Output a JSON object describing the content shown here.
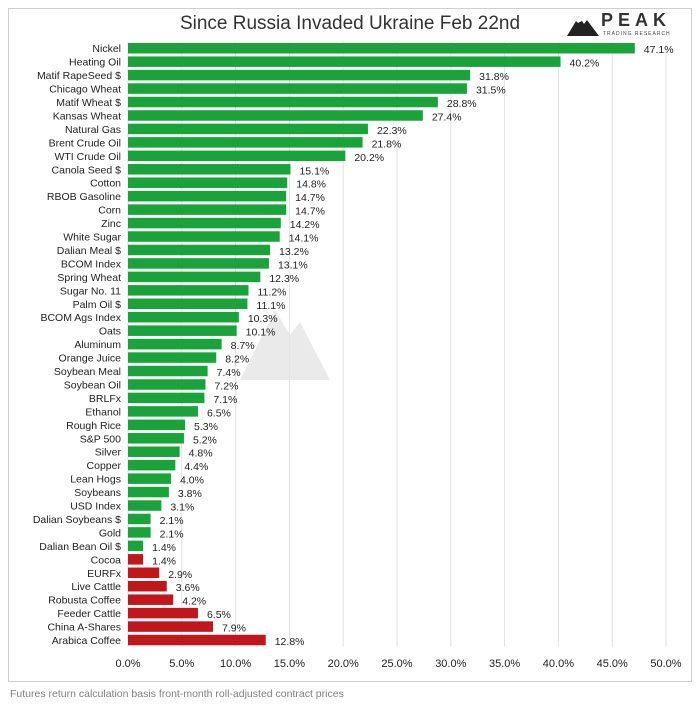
{
  "title": "Since Russia Invaded Ukraine Feb 22nd",
  "logo": {
    "name": "PEAK",
    "subtitle": "TRADING RESEARCH"
  },
  "footnote": "Futures return calculation basis front-month roll-adjusted contract prices",
  "colors": {
    "positive": "#1aa33b",
    "negative": "#c0161c",
    "text": "#222222",
    "grid": "#e2e2e2"
  },
  "chart_data": {
    "type": "bar",
    "orientation": "horizontal",
    "title": "Since Russia Invaded Ukraine Feb 22nd",
    "categories": [
      "Nickel",
      "Heating Oil",
      "Matif RapeSeed $",
      "Chicago Wheat",
      "Matif Wheat $",
      "Kansas Wheat",
      "Natural Gas",
      "Brent Crude Oil",
      "WTI Crude Oil",
      "Canola Seed $",
      "Cotton",
      "RBOB Gasoline",
      "Corn",
      "Zinc",
      "White Sugar",
      "Dalian Meal $",
      "BCOM Index",
      "Spring Wheat",
      "Sugar No. 11",
      "Palm Oil $",
      "BCOM Ags Index",
      "Oats",
      "Aluminum",
      "Orange Juice",
      "Soybean Meal",
      "Soybean Oil",
      "BRLFx",
      "Ethanol",
      "Rough Rice",
      "S&P 500",
      "Silver",
      "Copper",
      "Lean Hogs",
      "Soybeans",
      "USD Index",
      "Dalian Soybeans $",
      "Gold",
      "Dalian Bean Oil $",
      "Cocoa",
      "EURFx",
      "Live Cattle",
      "Robusta Coffee",
      "Feeder Cattle",
      "China A-Shares",
      "Arabica Coffee"
    ],
    "values": [
      47.1,
      40.2,
      31.8,
      31.5,
      28.8,
      27.4,
      22.3,
      21.8,
      20.2,
      15.1,
      14.8,
      14.7,
      14.7,
      14.2,
      14.1,
      13.2,
      13.1,
      12.3,
      11.2,
      11.1,
      10.3,
      10.1,
      8.7,
      8.2,
      7.4,
      7.2,
      7.1,
      6.5,
      5.3,
      5.2,
      4.8,
      4.4,
      4.0,
      3.8,
      3.1,
      2.1,
      2.1,
      1.4,
      1.4,
      2.9,
      3.6,
      4.2,
      6.5,
      7.9,
      12.8
    ],
    "signs": [
      "+",
      "+",
      "+",
      "+",
      "+",
      "+",
      "+",
      "+",
      "+",
      "+",
      "+",
      "+",
      "+",
      "+",
      "+",
      "+",
      "+",
      "+",
      "+",
      "+",
      "+",
      "+",
      "+",
      "+",
      "+",
      "+",
      "+",
      "+",
      "+",
      "+",
      "+",
      "+",
      "+",
      "+",
      "+",
      "+",
      "+",
      "+",
      "-",
      "-",
      "-",
      "-",
      "-",
      "-",
      "-"
    ],
    "value_labels": [
      "47.1%",
      "40.2%",
      "31.8%",
      "31.5%",
      "28.8%",
      "27.4%",
      "22.3%",
      "21.8%",
      "20.2%",
      "15.1%",
      "14.8%",
      "14.7%",
      "14.7%",
      "14.2%",
      "14.1%",
      "13.2%",
      "13.1%",
      "12.3%",
      "11.2%",
      "11.1%",
      "10.3%",
      "10.1%",
      "8.7%",
      "8.2%",
      "7.4%",
      "7.2%",
      "7.1%",
      "6.5%",
      "5.3%",
      "5.2%",
      "4.8%",
      "4.4%",
      "4.0%",
      "3.8%",
      "3.1%",
      "2.1%",
      "2.1%",
      "1.4%",
      "1.4%",
      "2.9%",
      "3.6%",
      "4.2%",
      "6.5%",
      "7.9%",
      "12.8%"
    ],
    "xlim": [
      0,
      50
    ],
    "xticks": [
      "0.0%",
      "5.0%",
      "10.0%",
      "15.0%",
      "20.0%",
      "25.0%",
      "30.0%",
      "35.0%",
      "40.0%",
      "45.0%",
      "50.0%"
    ],
    "grid": "vertical",
    "legend": "none"
  }
}
